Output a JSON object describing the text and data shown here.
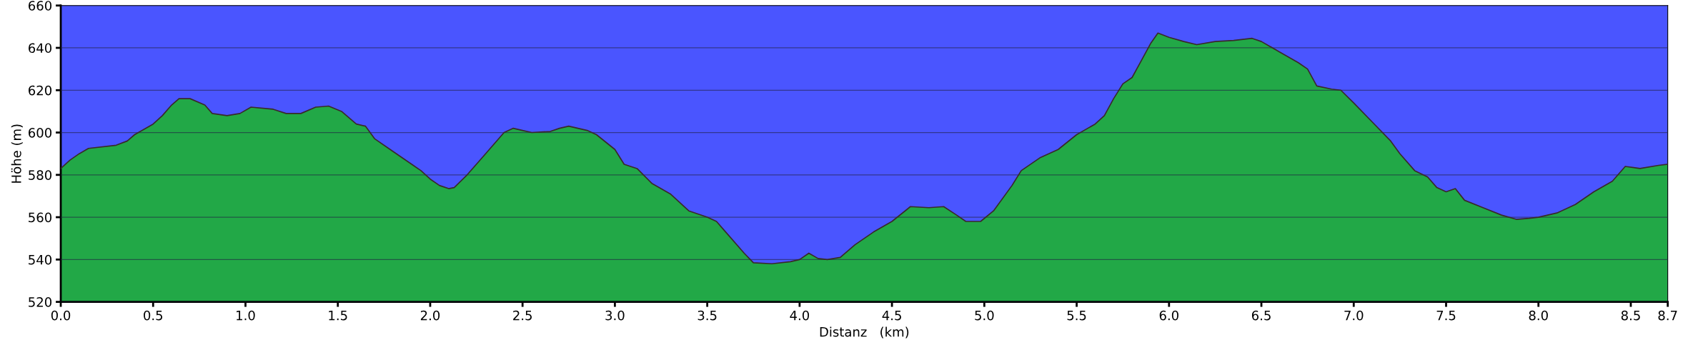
{
  "chart_data": {
    "type": "area",
    "xlabel": "Distanz   (km)",
    "ylabel": "Höhe (m)",
    "xlim": [
      0,
      8.7
    ],
    "ylim": [
      520,
      660
    ],
    "xticks": [
      {
        "value": 0,
        "label": "0.0"
      },
      0.5,
      {
        "value": 1,
        "label": "1.0"
      },
      1.5,
      {
        "value": 2,
        "label": "2.0"
      },
      2.5,
      {
        "value": 3,
        "label": "3.0"
      },
      3.5,
      {
        "value": 4,
        "label": "4.0"
      },
      4.5,
      {
        "value": 5,
        "label": "5.0"
      },
      5.5,
      {
        "value": 6,
        "label": "6.0"
      },
      6.5,
      {
        "value": 7,
        "label": "7.0"
      },
      7.5,
      {
        "value": 8,
        "label": "8.0"
      },
      8.5,
      8.7
    ],
    "yticks": [
      520,
      540,
      560,
      580,
      600,
      620,
      640,
      660
    ],
    "grid": "y",
    "series": [
      {
        "color": "#22a847",
        "x": [
          0.0,
          0.05,
          0.1,
          0.15,
          0.3,
          0.36,
          0.4,
          0.5,
          0.55,
          0.6,
          0.64,
          0.7,
          0.78,
          0.82,
          0.9,
          0.97,
          1.03,
          1.15,
          1.22,
          1.3,
          1.38,
          1.45,
          1.52,
          1.6,
          1.65,
          1.7,
          1.8,
          1.9,
          1.95,
          2.0,
          2.05,
          2.1,
          2.13,
          2.2,
          2.3,
          2.4,
          2.45,
          2.5,
          2.55,
          2.65,
          2.7,
          2.75,
          2.85,
          2.9,
          3.0,
          3.05,
          3.12,
          3.2,
          3.3,
          3.4,
          3.5,
          3.55,
          3.6,
          3.7,
          3.75,
          3.85,
          3.95,
          4.0,
          4.05,
          4.1,
          4.15,
          4.22,
          4.3,
          4.4,
          4.5,
          4.6,
          4.7,
          4.78,
          4.85,
          4.9,
          4.98,
          5.05,
          5.15,
          5.2,
          5.3,
          5.4,
          5.5,
          5.6,
          5.65,
          5.7,
          5.75,
          5.8,
          5.85,
          5.9,
          5.94,
          6.0,
          6.08,
          6.15,
          6.25,
          6.35,
          6.45,
          6.5,
          6.6,
          6.7,
          6.75,
          6.8,
          6.88,
          6.93,
          7.0,
          7.1,
          7.2,
          7.25,
          7.33,
          7.4,
          7.45,
          7.5,
          7.55,
          7.6,
          7.7,
          7.8,
          7.88,
          7.95,
          8.0,
          8.1,
          8.2,
          8.3,
          8.4,
          8.47,
          8.55,
          8.65,
          8.7
        ],
        "values": [
          583,
          587,
          590,
          592.5,
          594,
          596,
          599,
          604,
          608,
          613,
          616,
          616,
          613,
          609,
          608,
          609,
          612,
          611,
          609,
          609,
          612,
          612.5,
          610,
          604,
          603,
          597,
          591,
          585,
          582,
          578,
          575,
          573.5,
          574,
          580,
          590,
          600,
          602,
          601,
          600,
          600.5,
          602,
          603,
          601,
          599,
          592,
          585,
          583,
          576,
          571,
          563,
          560,
          558,
          553,
          543,
          538.5,
          538,
          539,
          540,
          543,
          540.5,
          540,
          541,
          547,
          553,
          558,
          565,
          564.5,
          565,
          561,
          558,
          558,
          563,
          575,
          582,
          588,
          592,
          599,
          604,
          608,
          616,
          623,
          626,
          634,
          642,
          647,
          645,
          643,
          641.5,
          643,
          643.5,
          644.5,
          643,
          638,
          633,
          630,
          622,
          620.5,
          620,
          614,
          605,
          596,
          590,
          582,
          579,
          574,
          572,
          573.5,
          568,
          564.5,
          561,
          559,
          559.5,
          560,
          562,
          566,
          572,
          577,
          584,
          583,
          584.5,
          585
        ]
      }
    ]
  }
}
